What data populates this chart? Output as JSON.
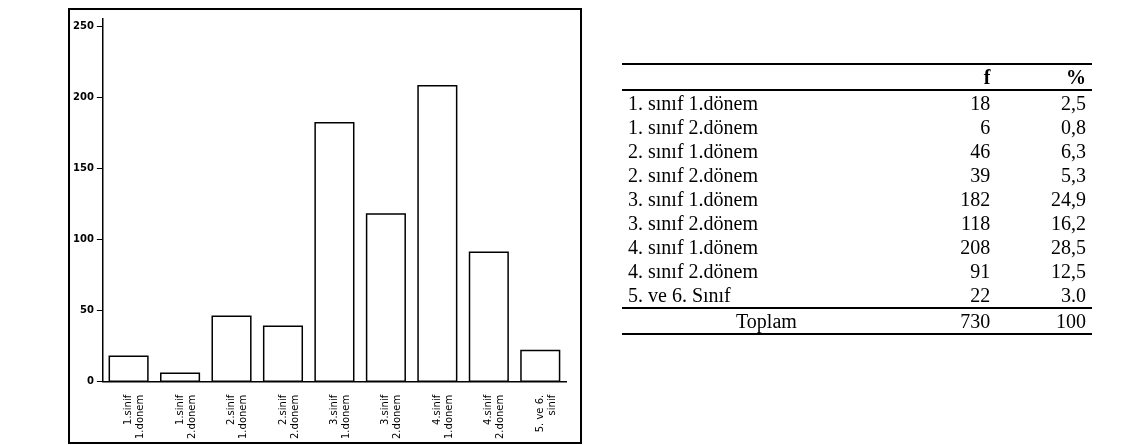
{
  "chart_data": [
    {
      "type": "bar",
      "categories": [
        "1.sinif 1.donem",
        "1.sinif 2.donem",
        "2.sinif 1.donem",
        "2.sinif 2.donem",
        "3.sinif 1.donem",
        "3.sinif 2.donem",
        "4.sinif 1.donem",
        "4.sinif 2.donem",
        "5. ve 6. sinif"
      ],
      "values": [
        18,
        6,
        46,
        39,
        182,
        118,
        208,
        91,
        22
      ],
      "color": "#ffffff",
      "ylim": [
        0,
        255
      ],
      "yticks": [
        0,
        50,
        100,
        150,
        200,
        250
      ],
      "grid": false,
      "legend": false
    },
    {
      "type": "other",
      "data_labels": true,
      "categories": [
        "1. sınıf 1.dönem",
        "1. sınıf 2.dönem",
        "2. sınıf 1.dönem",
        "2. sınıf 2.dönem",
        "3. sınıf 1.dönem",
        "3. sınıf 2.dönem",
        "4. sınıf 1.dönem",
        "4. sınıf 2.dönem",
        "5. ve 6. Sınıf",
        "Toplam"
      ],
      "series": [
        {
          "name": "f",
          "values": [
            18,
            6,
            46,
            39,
            182,
            118,
            208,
            91,
            22,
            730
          ]
        },
        {
          "name": "%",
          "values": [
            2.5,
            0.8,
            6.3,
            5.3,
            24.9,
            16.2,
            28.5,
            12.5,
            3.0,
            100
          ],
          "value_labels": [
            "2,5",
            "0,8",
            "6,3",
            "5,3",
            "24,9",
            "16,2",
            "28,5",
            "12,5",
            "3.0",
            "100"
          ]
        }
      ]
    }
  ]
}
